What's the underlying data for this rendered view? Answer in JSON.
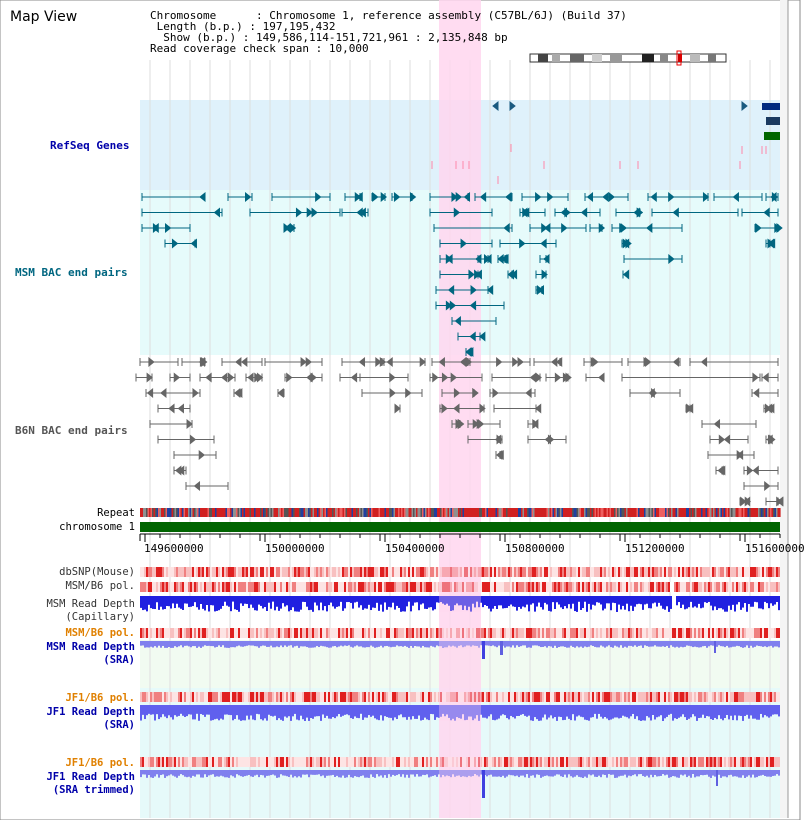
{
  "title": "Map View",
  "info": {
    "chromosome_key": "Chromosome",
    "chromosome_value": "Chromosome 1, reference assembly (C57BL/6J) (Build 37)",
    "length_key": "Length (b.p.)",
    "length_value": "197,195,432",
    "show_key": "Show (b.p.)",
    "show_value": "149,586,114-151,721,961 : 2,135,848 bp",
    "coverage_key": "Read coverage check span",
    "coverage_value": "10,000"
  },
  "tracks": {
    "refseq": "RefSeq Genes",
    "msm_bac": "MSM BAC end pairs",
    "b6n_bac": "B6N BAC end pairs",
    "repeat": "Repeat",
    "chromosome": "chromosome 1",
    "dbsnp": "dbSNP(Mouse)",
    "msm_b6_pol_1": "MSM/B6 pol.",
    "msm_depth_cap_1": "MSM Read Depth",
    "msm_depth_cap_2": "(Capillary)",
    "msm_b6_pol_2": "MSM/B6 pol.",
    "msm_depth_sra_1": "MSM Read Depth",
    "msm_depth_sra_2": "(SRA)",
    "jf1_b6_pol_1": "JF1/B6 pol.",
    "jf1_depth_sra_1": "JF1 Read Depth",
    "jf1_depth_sra_2": "(SRA)",
    "jf1_b6_pol_2": "JF1/B6 pol.",
    "jf1_depth_trim_1": "JF1 Read Depth",
    "jf1_depth_trim_2": "(SRA trimmed)"
  },
  "axis_ticks": [
    "149600000",
    "150000000",
    "150400000",
    "150800000",
    "151200000",
    "151600000"
  ],
  "colors": {
    "refseq_label": "#0000aa",
    "msm_label": "#006680",
    "b6n_label": "#555555",
    "orange_label": "#e08000",
    "blue_label": "#0000aa",
    "highlight": "#ffd8f0"
  }
}
